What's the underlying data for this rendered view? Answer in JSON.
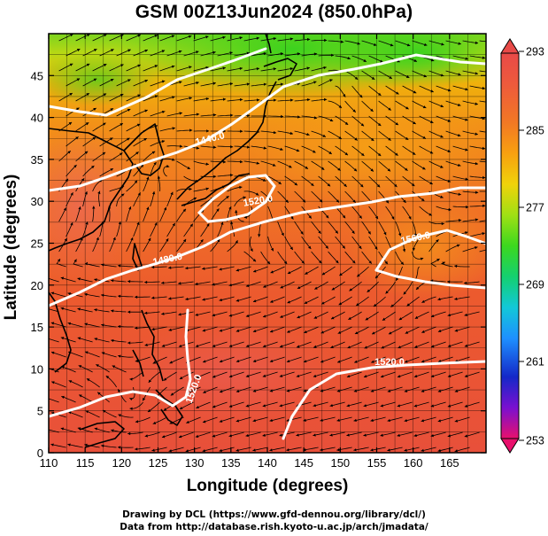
{
  "title": "GSM 00Z13Jun2024 (850.0hPa)",
  "xaxis": {
    "label": "Longitude (degrees)",
    "range": [
      110,
      170
    ],
    "ticks": [
      110,
      115,
      120,
      125,
      130,
      135,
      140,
      145,
      150,
      155,
      160,
      165
    ]
  },
  "yaxis": {
    "label": "Latitude  (degrees)",
    "range": [
      0,
      50
    ],
    "ticks": [
      0,
      5,
      10,
      15,
      20,
      25,
      30,
      35,
      40,
      45
    ]
  },
  "colorbar": {
    "range": [
      253,
      293
    ],
    "ticks": [
      293,
      285,
      277,
      269,
      261,
      253
    ],
    "colors": [
      "#e8106c",
      "#7a10d0",
      "#1428c8",
      "#1e90ff",
      "#12c8d8",
      "#14d070",
      "#3cd81e",
      "#a0e014",
      "#f0d20a",
      "#f8a010",
      "#f27824",
      "#ee5a3c",
      "#e84a48"
    ]
  },
  "contours": {
    "color": "#ffffff",
    "labels": [
      "1440.0",
      "1520.0",
      "1480.0",
      "1560.0",
      "1520.0",
      "1520.0"
    ]
  },
  "map": {
    "coastline_color": "#000000",
    "streamline_color": "#000000",
    "grid": true
  },
  "credits": {
    "line1": "Drawing by DCL (https://www.gfd-dennou.org/library/dcl/)",
    "line2": "Data from http://database.rish.kyoto-u.ac.jp/arch/jmadata/"
  }
}
